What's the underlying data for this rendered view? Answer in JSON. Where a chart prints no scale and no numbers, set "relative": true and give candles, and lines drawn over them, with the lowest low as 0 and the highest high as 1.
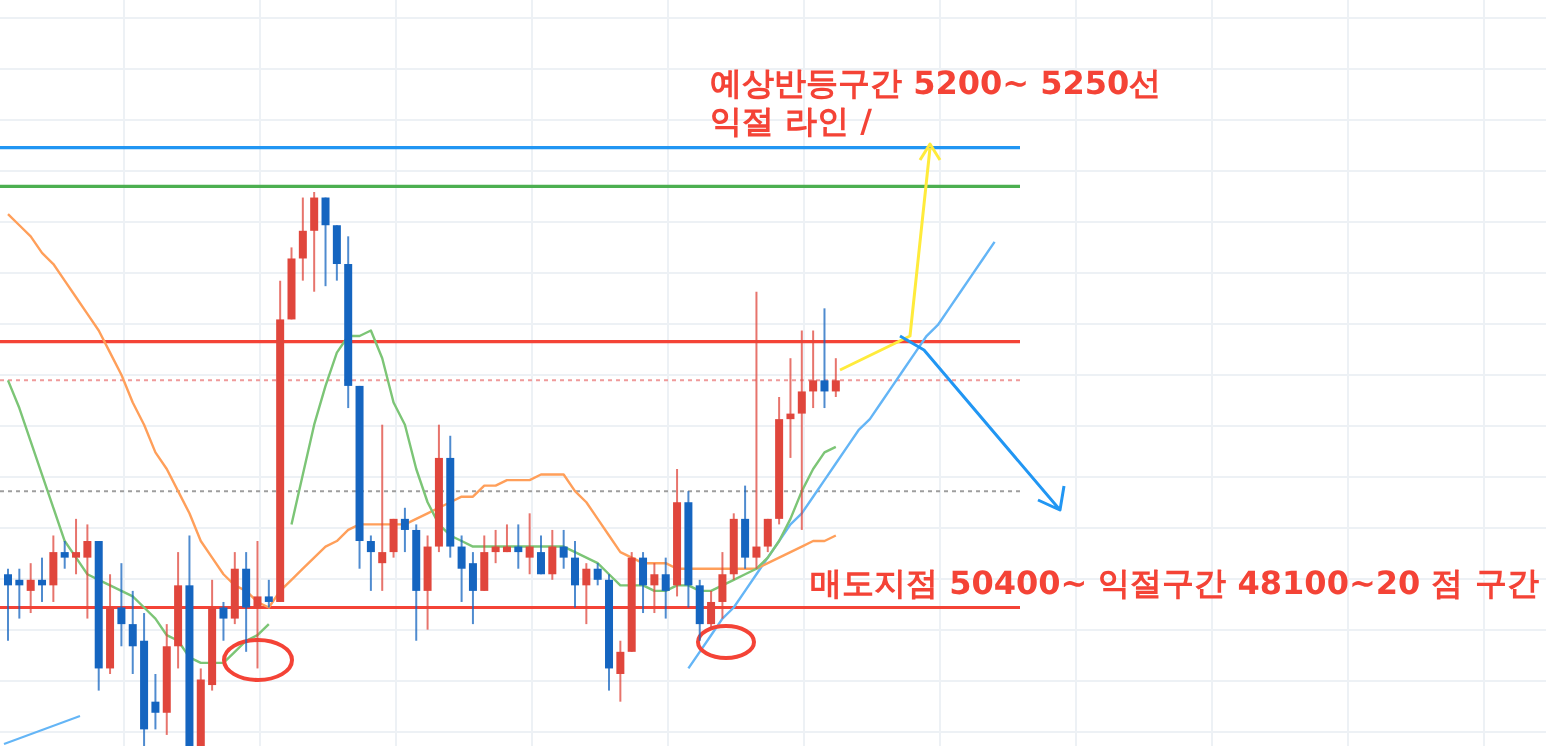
{
  "chart_data": {
    "type": "candlestick",
    "relative": true,
    "grid": true,
    "categories": [
      null,
      null,
      null,
      null,
      null,
      null,
      null,
      null,
      null,
      null,
      null,
      null,
      null,
      null,
      null,
      null,
      null,
      null,
      null,
      null,
      null,
      null,
      null,
      null,
      null,
      null,
      null,
      null,
      null,
      null,
      null,
      null,
      null,
      null,
      null,
      null,
      null,
      null,
      null,
      null,
      null,
      null,
      null,
      null,
      null,
      null,
      null,
      null,
      null,
      null,
      null,
      null,
      null,
      null,
      null,
      null,
      null,
      null,
      null,
      null,
      null,
      null,
      null,
      null,
      null,
      null,
      null,
      null,
      null,
      null,
      null,
      null,
      null,
      null,
      null,
      null,
      null,
      null,
      null,
      null,
      null,
      null,
      null,
      null,
      null,
      null,
      null,
      null
    ],
    "ohlc": [
      [
        0.31,
        0.32,
        0.19,
        0.29
      ],
      [
        0.3,
        0.32,
        0.23,
        0.29
      ],
      [
        0.28,
        0.33,
        0.24,
        0.3
      ],
      [
        0.3,
        0.34,
        0.26,
        0.29
      ],
      [
        0.29,
        0.38,
        0.26,
        0.35
      ],
      [
        0.35,
        0.37,
        0.32,
        0.34
      ],
      [
        0.34,
        0.41,
        0.31,
        0.35
      ],
      [
        0.34,
        0.4,
        0.23,
        0.37
      ],
      [
        0.37,
        0.37,
        0.1,
        0.14
      ],
      [
        0.14,
        0.31,
        0.13,
        0.25
      ],
      [
        0.25,
        0.33,
        0.18,
        0.22
      ],
      [
        0.22,
        0.28,
        0.13,
        0.18
      ],
      [
        0.19,
        0.24,
        0,
        0.03
      ],
      [
        0.08,
        0.13,
        0.03,
        0.06
      ],
      [
        0.06,
        0.22,
        0.02,
        0.18
      ],
      [
        0.18,
        0.35,
        0.14,
        0.29
      ],
      [
        0.29,
        0.38,
        0,
        0
      ],
      [
        0,
        0.14,
        0,
        0.12
      ],
      [
        0.11,
        0.3,
        0.1,
        0.25
      ],
      [
        0.25,
        0.26,
        0.19,
        0.23
      ],
      [
        0.23,
        0.35,
        0.22,
        0.32
      ],
      [
        0.32,
        0.35,
        0.17,
        0.25
      ],
      [
        0.25,
        0.37,
        0.14,
        0.27
      ],
      [
        0.27,
        0.3,
        0.25,
        0.26
      ],
      [
        0.26,
        0.84,
        0.26,
        0.77
      ],
      [
        0.77,
        0.9,
        0.77,
        0.88
      ],
      [
        0.88,
        0.99,
        0.84,
        0.93
      ],
      [
        0.93,
        1,
        0.82,
        0.99
      ],
      [
        0.99,
        0.99,
        0.83,
        0.94
      ],
      [
        0.94,
        0.94,
        0.84,
        0.87
      ],
      [
        0.87,
        0.92,
        0.61,
        0.65
      ],
      [
        0.65,
        0.65,
        0.32,
        0.37
      ],
      [
        0.37,
        0.38,
        0.28,
        0.35
      ],
      [
        0.33,
        0.58,
        0.28,
        0.35
      ],
      [
        0.35,
        0.41,
        0.34,
        0.41
      ],
      [
        0.41,
        0.43,
        0.35,
        0.39
      ],
      [
        0.39,
        0.4,
        0.19,
        0.28
      ],
      [
        0.28,
        0.38,
        0.21,
        0.36
      ],
      [
        0.36,
        0.58,
        0.35,
        0.52
      ],
      [
        0.52,
        0.56,
        0.34,
        0.36
      ],
      [
        0.36,
        0.38,
        0.26,
        0.32
      ],
      [
        0.33,
        0.35,
        0.22,
        0.28
      ],
      [
        0.28,
        0.38,
        0.28,
        0.35
      ],
      [
        0.35,
        0.39,
        0.33,
        0.36
      ],
      [
        0.35,
        0.4,
        0.35,
        0.36
      ],
      [
        0.36,
        0.4,
        0.32,
        0.35
      ],
      [
        0.34,
        0.42,
        0.31,
        0.36
      ],
      [
        0.35,
        0.38,
        0.31,
        0.31
      ],
      [
        0.31,
        0.39,
        0.3,
        0.36
      ],
      [
        0.36,
        0.39,
        0.32,
        0.34
      ],
      [
        0.34,
        0.37,
        0.25,
        0.29
      ],
      [
        0.29,
        0.33,
        0.22,
        0.32
      ],
      [
        0.32,
        0.33,
        0.29,
        0.3
      ],
      [
        0.3,
        0.31,
        0.1,
        0.14
      ],
      [
        0.13,
        0.19,
        0.08,
        0.17
      ],
      [
        0.17,
        0.35,
        0.17,
        0.34
      ],
      [
        0.34,
        0.35,
        0.24,
        0.29
      ],
      [
        0.29,
        0.33,
        0.24,
        0.31
      ],
      [
        0.31,
        0.34,
        0.23,
        0.28
      ],
      [
        0.29,
        0.5,
        0.27,
        0.44
      ],
      [
        0.44,
        0.46,
        0.25,
        0.29
      ],
      [
        0.29,
        0.3,
        0.19,
        0.22
      ],
      [
        0.22,
        0.28,
        0.21,
        0.26
      ],
      [
        0.26,
        0.35,
        0.23,
        0.31
      ],
      [
        0.31,
        0.42,
        0.3,
        0.41
      ],
      [
        0.41,
        0.47,
        0.32,
        0.34
      ],
      [
        0.34,
        0.82,
        0.32,
        0.36
      ],
      [
        0.36,
        0.41,
        0.35,
        0.41
      ],
      [
        0.41,
        0.63,
        0.4,
        0.59
      ],
      [
        0.59,
        0.7,
        0.52,
        0.6
      ],
      [
        0.6,
        0.75,
        0.39,
        0.64
      ],
      [
        0.64,
        0.75,
        0.61,
        0.66
      ],
      [
        0.66,
        0.79,
        0.61,
        0.64
      ],
      [
        0.64,
        0.7,
        0.63,
        0.66
      ],
      null,
      null,
      null,
      null,
      null,
      null,
      null,
      null,
      null,
      null,
      null,
      null,
      null,
      null
    ],
    "colors": [
      "#1565c0",
      "#1565c0",
      "#e0463c",
      "#1565c0",
      "#e0463c",
      "#1565c0",
      "#e0463c",
      "#e0463c",
      "#1565c0",
      "#e0463c",
      "#1565c0",
      "#1565c0",
      "#1565c0",
      "#1565c0",
      "#e0463c",
      "#e0463c",
      "#1565c0",
      "#e0463c",
      "#e0463c",
      "#1565c0",
      "#e0463c",
      "#1565c0",
      "#e0463c",
      "#1565c0",
      "#e0463c",
      "#e0463c",
      "#e0463c",
      "#e0463c",
      "#1565c0",
      "#1565c0",
      "#1565c0",
      "#1565c0",
      "#1565c0",
      "#e0463c",
      "#e0463c",
      "#1565c0",
      "#1565c0",
      "#e0463c",
      "#e0463c",
      "#1565c0",
      "#1565c0",
      "#1565c0",
      "#e0463c",
      "#e0463c",
      "#e0463c",
      "#1565c0",
      "#e0463c",
      "#1565c0",
      "#e0463c",
      "#1565c0",
      "#1565c0",
      "#e0463c",
      "#1565c0",
      "#1565c0",
      "#e0463c",
      "#e0463c",
      "#1565c0",
      "#e0463c",
      "#1565c0",
      "#e0463c",
      "#1565c0",
      "#1565c0",
      "#e0463c",
      "#e0463c",
      "#e0463c",
      "#1565c0",
      "#e0463c",
      "#e0463c",
      "#e0463c",
      "#e0463c",
      "#e0463c",
      "#e0463c",
      "#1565c0",
      "#e0463c",
      null,
      null,
      null,
      null,
      null,
      null,
      null,
      null,
      null,
      null,
      null,
      null,
      null,
      null
    ],
    "series": [
      {
        "type": "line",
        "color": "#64b5f6",
        "values": [
          null,
          null,
          null,
          null,
          null,
          null,
          null,
          null,
          null,
          null,
          null,
          null,
          null,
          null,
          null,
          null,
          null,
          null,
          null,
          null,
          null,
          null,
          null,
          null,
          null,
          null,
          null,
          null,
          null,
          null,
          null,
          null,
          null,
          null,
          null,
          null,
          null,
          null,
          null,
          null,
          null,
          null,
          null,
          null,
          null,
          null,
          null,
          null,
          null,
          null,
          null,
          null,
          null,
          null,
          null,
          null,
          null,
          null,
          null,
          null,
          0.14,
          0.17,
          0.2,
          0.23,
          0.25,
          0.28,
          0.31,
          0.34,
          0.37,
          0.4,
          0.42,
          0.45,
          0.48,
          0.51,
          0.54,
          0.57,
          0.59,
          0.62,
          0.65,
          0.68,
          0.71,
          0.74,
          0.76,
          0.79,
          0.82,
          0.85,
          0.88,
          0.91
        ]
      },
      {
        "type": "line",
        "color": "#ff9f5a",
        "values": [
          0.96,
          0.94,
          0.92,
          0.89,
          0.87,
          0.84,
          0.81,
          0.78,
          0.75,
          0.71,
          0.67,
          0.62,
          0.58,
          0.53,
          0.5,
          0.46,
          0.42,
          0.37,
          0.34,
          0.31,
          0.29,
          0.28,
          0.26,
          0.25,
          0.28,
          0.3,
          0.32,
          0.34,
          0.36,
          0.37,
          0.39,
          0.4,
          0.4,
          0.4,
          0.4,
          0.4,
          0.41,
          0.42,
          0.43,
          0.44,
          0.45,
          0.45,
          0.47,
          0.47,
          0.48,
          0.48,
          0.48,
          0.49,
          0.49,
          0.49,
          0.46,
          0.44,
          0.41,
          0.38,
          0.35,
          0.34,
          0.33,
          0.33,
          0.33,
          0.32,
          0.32,
          0.32,
          0.32,
          0.32,
          0.32,
          0.32,
          0.32,
          0.33,
          0.34,
          0.35,
          0.36,
          0.37,
          0.37,
          0.38,
          null,
          null,
          null,
          null,
          null,
          null,
          null,
          null,
          null,
          null,
          null,
          null,
          null,
          null
        ]
      },
      {
        "type": "line",
        "color": "#7cc576",
        "values": [
          0.66,
          0.61,
          0.55,
          0.49,
          0.43,
          0.37,
          0.34,
          0.31,
          0.3,
          0.29,
          0.28,
          0.27,
          0.25,
          0.23,
          0.2,
          0.19,
          0.16,
          0.15,
          0.15,
          0.15,
          0.17,
          0.19,
          0.2,
          0.22,
          null,
          0.4,
          0.49,
          0.58,
          0.65,
          0.71,
          0.74,
          0.74,
          0.75,
          0.7,
          0.62,
          0.58,
          0.5,
          0.44,
          0.4,
          0.38,
          0.37,
          0.36,
          0.36,
          0.36,
          0.36,
          0.36,
          0.36,
          0.36,
          0.36,
          0.36,
          0.35,
          0.34,
          0.33,
          0.31,
          0.29,
          0.29,
          0.29,
          0.28,
          0.28,
          0.29,
          0.29,
          0.28,
          0.28,
          0.29,
          0.3,
          0.31,
          0.32,
          0.34,
          0.37,
          0.41,
          0.46,
          0.5,
          0.53,
          0.54,
          null,
          null,
          null,
          null,
          null,
          null,
          null,
          null,
          null,
          null,
          null,
          null,
          null,
          null
        ]
      }
    ],
    "ref_lines": [
      {
        "axis": "y",
        "value": 1.08,
        "color": "#2196f3"
      },
      {
        "axis": "y",
        "value": 1.01,
        "color": "#4caf50"
      },
      {
        "axis": "y",
        "value": 0.73,
        "color": "#f44336"
      },
      {
        "axis": "y",
        "value": 0.66,
        "color": "#ef9a9a",
        "line_style": "dotted"
      },
      {
        "axis": "y",
        "value": 0.46,
        "color": "#9e9e9e",
        "line_style": "dotted"
      },
      {
        "axis": "y",
        "value": 0.25,
        "color": "#f44336"
      }
    ],
    "annotations": [
      "예상반등구간 5200~ 5250선",
      "익절 라인 /",
      "매도지점 50400~ 익절구간 48100~20 점 구간"
    ]
  }
}
